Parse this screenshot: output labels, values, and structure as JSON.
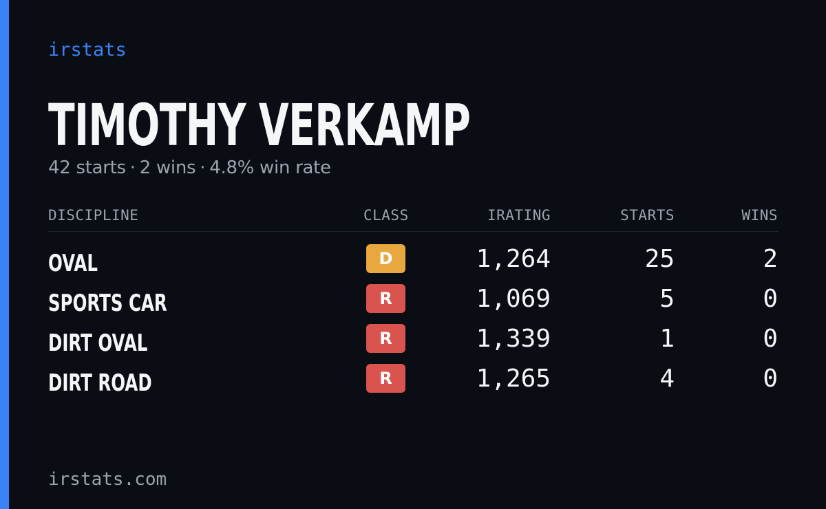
{
  "brand": "irstats",
  "player": {
    "name": "TIMOTHY VERKAMP",
    "starts": "42 starts",
    "wins": "2 wins",
    "win_rate": "4.8% win rate",
    "separator": "·"
  },
  "table": {
    "headers": {
      "discipline": "DISCIPLINE",
      "class": "CLASS",
      "irating": "IRATING",
      "starts": "STARTS",
      "wins": "WINS"
    },
    "rows": [
      {
        "discipline": "OVAL",
        "class": "D",
        "class_color": "#e8a73f",
        "irating": "1,264",
        "starts": "25",
        "wins": "2"
      },
      {
        "discipline": "SPORTS CAR",
        "class": "R",
        "class_color": "#d9534f",
        "irating": "1,069",
        "starts": "5",
        "wins": "0"
      },
      {
        "discipline": "DIRT OVAL",
        "class": "R",
        "class_color": "#d9534f",
        "irating": "1,339",
        "starts": "1",
        "wins": "0"
      },
      {
        "discipline": "DIRT ROAD",
        "class": "R",
        "class_color": "#d9534f",
        "irating": "1,265",
        "starts": "4",
        "wins": "0"
      }
    ]
  },
  "footer": {
    "url": "irstats.com"
  },
  "colors": {
    "accent": "#3b82f6",
    "background": "#0a0d14",
    "muted_text": "#9ca3af",
    "class_d": "#e8a73f",
    "class_r": "#d9534f"
  }
}
